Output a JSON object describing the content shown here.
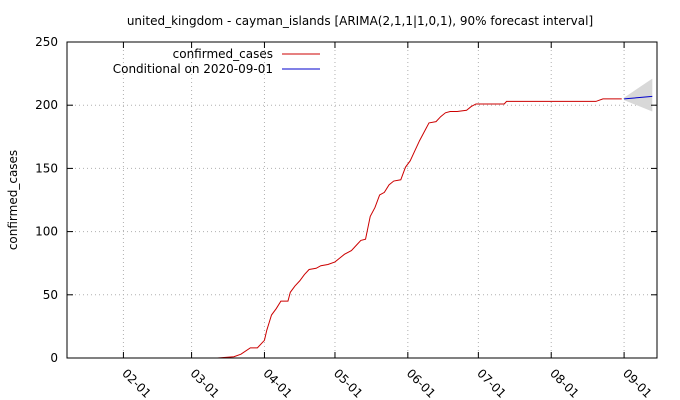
{
  "chart_data": {
    "type": "line",
    "title": "united_kingdom - cayman_islands [ARIMA(2,1,1|1,0,1), 90% forecast interval]",
    "xlabel": "",
    "ylabel": "confirmed_cases",
    "xlim": [
      "2020-01-08",
      "2020-09-15"
    ],
    "ylim": [
      0,
      250
    ],
    "y_ticks": [
      0,
      50,
      100,
      150,
      200,
      250
    ],
    "x_ticks": [
      {
        "date": "2020-02-01",
        "label": "02-01"
      },
      {
        "date": "2020-03-01",
        "label": "03-01"
      },
      {
        "date": "2020-04-01",
        "label": "04-01"
      },
      {
        "date": "2020-05-01",
        "label": "05-01"
      },
      {
        "date": "2020-06-01",
        "label": "06-01"
      },
      {
        "date": "2020-07-01",
        "label": "07-01"
      },
      {
        "date": "2020-08-01",
        "label": "08-01"
      },
      {
        "date": "2020-09-01",
        "label": "09-01"
      }
    ],
    "grid": true,
    "legend_position": "top-left",
    "series": [
      {
        "name": "confirmed_cases",
        "color": "#cc0000",
        "points": [
          [
            "2020-03-12",
            0
          ],
          [
            "2020-03-19",
            1
          ],
          [
            "2020-03-22",
            3
          ],
          [
            "2020-03-26",
            8
          ],
          [
            "2020-03-29",
            8
          ],
          [
            "2020-03-31",
            12
          ],
          [
            "2020-04-01",
            14
          ],
          [
            "2020-04-02",
            22
          ],
          [
            "2020-04-03",
            28
          ],
          [
            "2020-04-04",
            34
          ],
          [
            "2020-04-06",
            39
          ],
          [
            "2020-04-08",
            45
          ],
          [
            "2020-04-11",
            45
          ],
          [
            "2020-04-12",
            52
          ],
          [
            "2020-04-14",
            57
          ],
          [
            "2020-04-16",
            61
          ],
          [
            "2020-04-18",
            66
          ],
          [
            "2020-04-20",
            70
          ],
          [
            "2020-04-23",
            71
          ],
          [
            "2020-04-25",
            73
          ],
          [
            "2020-04-28",
            74
          ],
          [
            "2020-05-01",
            76
          ],
          [
            "2020-05-03",
            79
          ],
          [
            "2020-05-05",
            82
          ],
          [
            "2020-05-08",
            85
          ],
          [
            "2020-05-10",
            89
          ],
          [
            "2020-05-12",
            93
          ],
          [
            "2020-05-14",
            94
          ],
          [
            "2020-05-15",
            103
          ],
          [
            "2020-05-16",
            112
          ],
          [
            "2020-05-18",
            119
          ],
          [
            "2020-05-20",
            129
          ],
          [
            "2020-05-22",
            131
          ],
          [
            "2020-05-24",
            137
          ],
          [
            "2020-05-26",
            140
          ],
          [
            "2020-05-29",
            141
          ],
          [
            "2020-05-31",
            151
          ],
          [
            "2020-06-02",
            156
          ],
          [
            "2020-06-04",
            164
          ],
          [
            "2020-06-06",
            172
          ],
          [
            "2020-06-08",
            179
          ],
          [
            "2020-06-10",
            186
          ],
          [
            "2020-06-13",
            187
          ],
          [
            "2020-06-15",
            191
          ],
          [
            "2020-06-17",
            194
          ],
          [
            "2020-06-19",
            195
          ],
          [
            "2020-06-22",
            195
          ],
          [
            "2020-06-26",
            196
          ],
          [
            "2020-06-28",
            199
          ],
          [
            "2020-06-30",
            201
          ],
          [
            "2020-07-05",
            201
          ],
          [
            "2020-07-12",
            201
          ],
          [
            "2020-07-13",
            203
          ],
          [
            "2020-07-20",
            203
          ],
          [
            "2020-08-01",
            203
          ],
          [
            "2020-08-10",
            203
          ],
          [
            "2020-08-20",
            203
          ],
          [
            "2020-08-23",
            205
          ],
          [
            "2020-08-31",
            205
          ]
        ]
      },
      {
        "name": "Conditional on 2020-09-01",
        "color": "#0000cc",
        "points": [
          [
            "2020-09-01",
            205
          ],
          [
            "2020-09-07",
            206
          ],
          [
            "2020-09-13",
            207
          ]
        ]
      }
    ],
    "forecast_interval": {
      "color": "#d8d8d8",
      "upper": [
        [
          "2020-09-01",
          206
        ],
        [
          "2020-09-13",
          221
        ]
      ],
      "lower": [
        [
          "2020-09-01",
          204
        ],
        [
          "2020-09-13",
          195
        ]
      ]
    }
  }
}
